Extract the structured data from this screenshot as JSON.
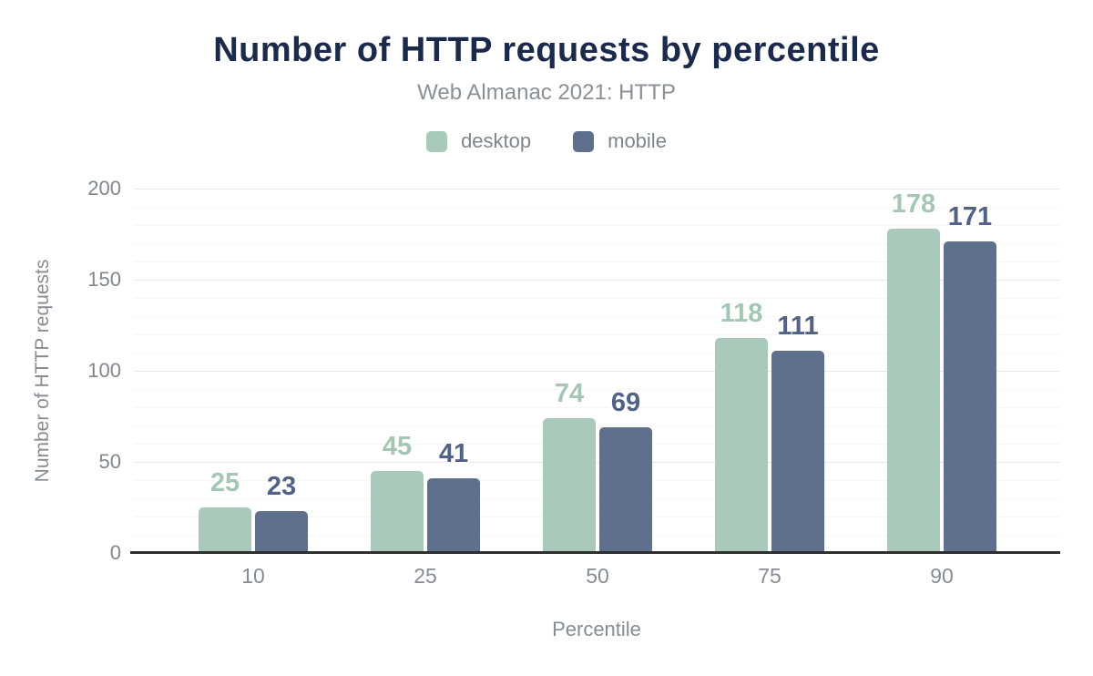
{
  "chart_data": {
    "type": "bar",
    "title": "Number of HTTP requests by percentile",
    "subtitle": "Web Almanac 2021: HTTP",
    "xlabel": "Percentile",
    "ylabel": "Number of HTTP requests",
    "categories": [
      "10",
      "25",
      "50",
      "75",
      "90"
    ],
    "series": [
      {
        "name": "desktop",
        "color": "#a9cabb",
        "label_color": "#a4c7b4",
        "values": [
          25,
          45,
          74,
          118,
          178
        ]
      },
      {
        "name": "mobile",
        "color": "#5f708e",
        "label_color": "#5162855",
        "values": [
          23,
          41,
          69,
          111,
          171
        ]
      }
    ],
    "ylim": [
      0,
      200
    ],
    "y_ticks": [
      0,
      50,
      100,
      150,
      200
    ],
    "grid_minor_step": 10,
    "grid_major_step": 50,
    "grid": "on",
    "legend_position": "top-center",
    "colors": {
      "title": "#1b2a4a",
      "subtitle": "#8a9097",
      "axis_text": "#868c94",
      "axis_line": "#2f2f2f",
      "grid_major": "#e7e7e7",
      "grid_minor": "#f6f6f6"
    }
  }
}
